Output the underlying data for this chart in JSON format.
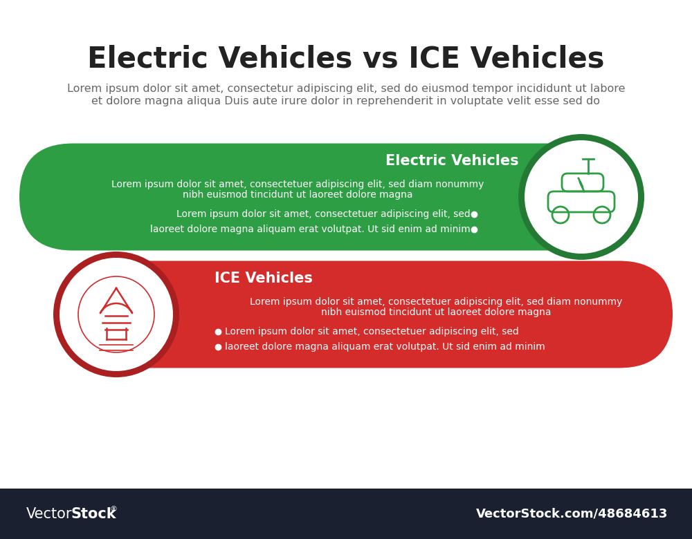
{
  "title": "Electric Vehicles vs ICE Vehicles",
  "subtitle_line1": "Lorem ipsum dolor sit amet, consectetur adipiscing elit, sed do eiusmod tempor incididunt ut labore",
  "subtitle_line2": "et dolore magna aliqua Duis aute irure dolor in reprehenderit in voluptate velit esse sed do",
  "ev_title": "Electric Vehicles",
  "ev_desc_line1": "Lorem ipsum dolor sit amet, consectetuer adipiscing elit, sed diam nonummy",
  "ev_desc_line2": "nibh euismod tincidunt ut laoreet dolore magna",
  "ev_bullet1": "Lorem ipsum dolor sit amet, consectetuer adipiscing elit, sed",
  "ev_bullet2": "laoreet dolore magna aliquam erat volutpat. Ut sid enim ad minim",
  "ev_color": "#2e9e45",
  "ev_dark_color": "#247a34",
  "ice_title": "ICE Vehicles",
  "ice_desc_line1": "Lorem ipsum dolor sit amet, consectetuer adipiscing elit, sed diam nonummy",
  "ice_desc_line2": "nibh euismod tincidunt ut laoreet dolore magna",
  "ice_bullet1": "Lorem ipsum dolor sit amet, consectetuer adipiscing elit, sed",
  "ice_bullet2": "laoreet dolore magna aliquam erat volutpat. Ut sid enim ad minim",
  "ice_color": "#d42b2b",
  "ice_dark_color": "#aa2020",
  "bg_color": "#ffffff",
  "footer_color": "#1a2030",
  "footer_text_right": "VectorStock.com/48684613",
  "title_color": "#222222",
  "subtitle_color": "#666666"
}
